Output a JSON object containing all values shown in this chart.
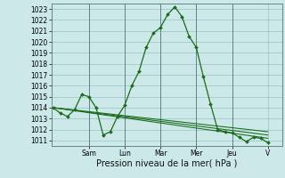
{
  "background_color": "#cce8e8",
  "grid_color": "#88bbbb",
  "line_color": "#1a6b1a",
  "marker": "D",
  "markersize": 2.0,
  "linewidth": 0.9,
  "ylim": [
    1010.5,
    1023.5
  ],
  "yticks": [
    1011,
    1012,
    1013,
    1014,
    1015,
    1016,
    1017,
    1018,
    1019,
    1020,
    1021,
    1022,
    1023
  ],
  "xlabel": "Pression niveau de la mer( hPa )",
  "xlabel_fontsize": 7,
  "tick_fontsize": 5.5,
  "day_labels": [
    "Sam",
    "Lun",
    "Mar",
    "Mer",
    "Jeu",
    "V"
  ],
  "day_positions": [
    2.0,
    4.0,
    6.0,
    8.0,
    10.0,
    12.0
  ],
  "xlim": [
    -0.1,
    12.8
  ],
  "series": [
    {
      "x": [
        0,
        0.4,
        0.8,
        1.2,
        1.6,
        2.0,
        2.4,
        2.8,
        3.2,
        3.6,
        4.0,
        4.4,
        4.8,
        5.2,
        5.6,
        6.0,
        6.4,
        6.8,
        7.2,
        7.6,
        8.0,
        8.4,
        8.8,
        9.2,
        9.6,
        10.0,
        10.4,
        10.8,
        11.2,
        11.6,
        12.0
      ],
      "y": [
        1014.0,
        1013.5,
        1013.2,
        1013.8,
        1015.2,
        1015.0,
        1014.0,
        1011.5,
        1011.8,
        1013.2,
        1014.2,
        1016.0,
        1017.3,
        1019.5,
        1020.8,
        1021.3,
        1022.5,
        1023.2,
        1022.3,
        1020.5,
        1019.5,
        1016.8,
        1014.3,
        1012.0,
        1011.8,
        1011.7,
        1011.3,
        1010.9,
        1011.3,
        1011.2,
        1010.8
      ]
    },
    {
      "x": [
        0,
        12.0
      ],
      "y": [
        1014.0,
        1011.2
      ]
    },
    {
      "x": [
        0,
        12.0
      ],
      "y": [
        1014.0,
        1011.5
      ]
    },
    {
      "x": [
        0,
        12.0
      ],
      "y": [
        1014.0,
        1011.8
      ]
    }
  ]
}
